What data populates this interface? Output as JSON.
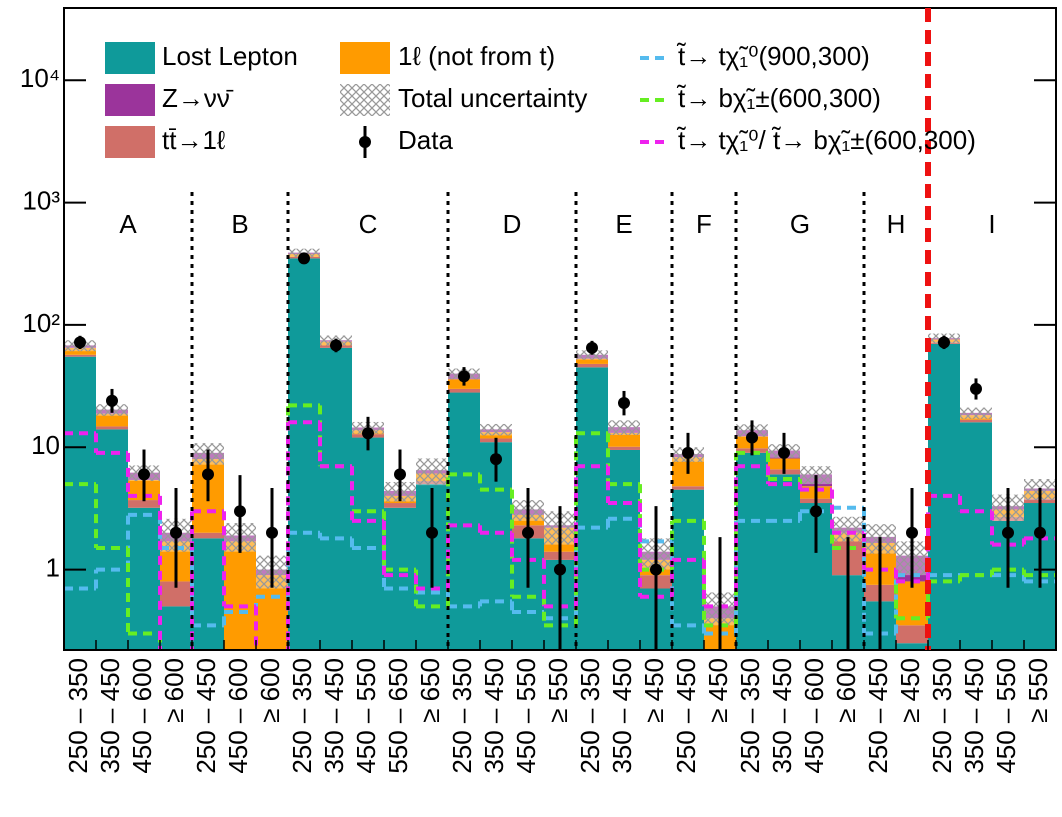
{
  "chart_data": {
    "type": "bar",
    "stacked": true,
    "log_scale": true,
    "categories": [
      "250 – 350",
      "350 – 450",
      "450 – 600",
      "≥ 600",
      "250 – 450",
      "450 – 600",
      "≥ 600",
      "250 – 350",
      "350 – 450",
      "450 – 550",
      "550 – 650",
      "≥ 650",
      "250 – 350",
      "350 – 450",
      "450 – 550",
      "≥ 550",
      "250 – 350",
      "350 – 450",
      "≥ 450",
      "250 – 450",
      "≥ 450",
      "250 – 350",
      "350 – 450",
      "450 – 600",
      "≥ 600",
      "250 – 450",
      "≥ 450",
      "250 – 350",
      "350 – 450",
      "450 – 550",
      "≥ 550"
    ],
    "groups": [
      {
        "label": "A",
        "size": 4
      },
      {
        "label": "B",
        "size": 3
      },
      {
        "label": "C",
        "size": 5
      },
      {
        "label": "D",
        "size": 4
      },
      {
        "label": "E",
        "size": 3
      },
      {
        "label": "F",
        "size": 2
      },
      {
        "label": "G",
        "size": 4
      },
      {
        "label": "H",
        "size": 2
      },
      {
        "label": "I",
        "size": 4
      }
    ],
    "series": [
      {
        "name": "Lost Lepton",
        "color": "#0f9a9a",
        "values": [
          55,
          14,
          3.2,
          0.5,
          1.8,
          0.1,
          0.05,
          350,
          65,
          12,
          3.2,
          5,
          28,
          11,
          1.8,
          1.2,
          45,
          9.5,
          0.7,
          4.5,
          0.05,
          9,
          6,
          3.5,
          0.9,
          0.55,
          0.25,
          70,
          16,
          2.5,
          3.5
        ]
      },
      {
        "name": "tt̄→1ℓ",
        "color": "#d06f68",
        "values": [
          2,
          0.8,
          0.5,
          0.3,
          0.2,
          0.1,
          0.05,
          10,
          3,
          0.8,
          0.3,
          0.3,
          2,
          0.8,
          0.5,
          0.2,
          3,
          0.6,
          0.2,
          0.3,
          0.1,
          0.8,
          0.6,
          0.3,
          0.8,
          0.2,
          0.1,
          2,
          0.8,
          0.2,
          0.3
        ]
      },
      {
        "name": "1ℓ (not from t)",
        "color": "#ff9b00",
        "values": [
          8,
          4,
          1.7,
          0.9,
          6,
          1.5,
          0.8,
          20,
          5,
          1,
          0.5,
          0.8,
          6,
          1.5,
          0.5,
          0.8,
          5,
          3,
          0.3,
          3.5,
          0.25,
          2.5,
          1.5,
          1,
          0.3,
          0.9,
          0.45,
          4,
          1.5,
          0.4,
          0.6
        ]
      },
      {
        "name": "Z→νν̄",
        "color": "#9b349b",
        "values": [
          3,
          1.5,
          0.8,
          0.3,
          1,
          0.2,
          0.1,
          10,
          2,
          0.7,
          0.4,
          0.4,
          4,
          0.7,
          0.3,
          0.1,
          4,
          1.5,
          0.2,
          0.5,
          0.1,
          1.5,
          1.3,
          1.2,
          0.2,
          0.2,
          0.5,
          2,
          0.8,
          0.2,
          0.2
        ]
      }
    ],
    "uncertainty": {
      "name": "Total uncertainty",
      "values": [
        7,
        2.2,
        0.9,
        0.6,
        1.8,
        0.5,
        0.3,
        30,
        7,
        1.6,
        0.8,
        1.6,
        4,
        1.5,
        0.6,
        0.7,
        5,
        2,
        0.4,
        1.2,
        0.15,
        1.6,
        1.2,
        1,
        0.5,
        0.5,
        0.4,
        7,
        2,
        0.8,
        0.9
      ]
    },
    "data": {
      "name": "Data",
      "values": [
        72,
        24,
        6,
        2,
        6,
        3,
        2,
        350,
        68,
        13,
        6,
        2,
        38,
        8,
        2,
        1,
        65,
        23,
        1,
        9,
        0,
        12,
        9,
        3,
        0,
        0,
        2,
        72,
        30,
        2,
        2
      ],
      "err_low": [
        8.5,
        4.88,
        2.38,
        1.29,
        2.38,
        1.63,
        1.29,
        18.7,
        8.2,
        3.57,
        2.38,
        1.29,
        6.1,
        2.77,
        1.29,
        0.83,
        8,
        4.77,
        0.83,
        2.94,
        0,
        3.41,
        2.94,
        1.63,
        0,
        0,
        1.29,
        8.5,
        5.45,
        1.29,
        1.29
      ],
      "err_high": [
        9.5,
        5.97,
        3.58,
        2.64,
        3.58,
        2.92,
        2.64,
        19.7,
        9.3,
        4.73,
        3.58,
        2.64,
        7.2,
        3.95,
        2.64,
        2.3,
        9.1,
        5.86,
        2.3,
        4.11,
        1.84,
        4.58,
        4.11,
        2.92,
        1.84,
        1.84,
        2.64,
        9.5,
        6.54,
        2.64,
        2.64
      ]
    },
    "signals": [
      {
        "name": "t̃→ tχ̃₁⁰(900,300)",
        "color": "#55bbee",
        "values": [
          0.7,
          1.0,
          2.8,
          1.5,
          0.35,
          0.45,
          0.6,
          2.0,
          1.8,
          1.5,
          0.7,
          0.65,
          0.5,
          0.55,
          0.45,
          0.4,
          2.2,
          2.6,
          1.7,
          0.35,
          0.3,
          2.5,
          2.5,
          3.0,
          3.2,
          0.3,
          0.9,
          0.9,
          0.9,
          0.9,
          0.8
        ]
      },
      {
        "name": "t̃→ bχ̃₁±(600,300)",
        "color": "#66ee22",
        "values": [
          5,
          1.5,
          0.3,
          0.12,
          0.15,
          0.2,
          0.15,
          22,
          7,
          3,
          1,
          0.5,
          6,
          4.5,
          0.6,
          0.35,
          13,
          5,
          1,
          2.5,
          0.35,
          9,
          5.5,
          4.5,
          1.5,
          1,
          0.4,
          0.8,
          0.9,
          1,
          0.9
        ]
      },
      {
        "name": "t̃→ tχ̃₁⁰/ t̃→ bχ̃₁±(600,300)",
        "color": "#ee22ee",
        "values": [
          13,
          9,
          4,
          0.15,
          3,
          0.5,
          0.15,
          16,
          7,
          2.5,
          0.9,
          0.7,
          2.3,
          2,
          1.2,
          0.5,
          7,
          3.5,
          0.6,
          1.2,
          0.5,
          7,
          5,
          4.5,
          2,
          1,
          0.8,
          4,
          3,
          1.6,
          1.8
        ]
      }
    ],
    "ylim": [
      0.22,
      39000
    ],
    "yticks": [
      1,
      10,
      {
        "value": 100,
        "label": "10²"
      },
      {
        "value": 1000,
        "label": "10³"
      },
      {
        "value": 10000,
        "label": "10⁴"
      }
    ]
  }
}
